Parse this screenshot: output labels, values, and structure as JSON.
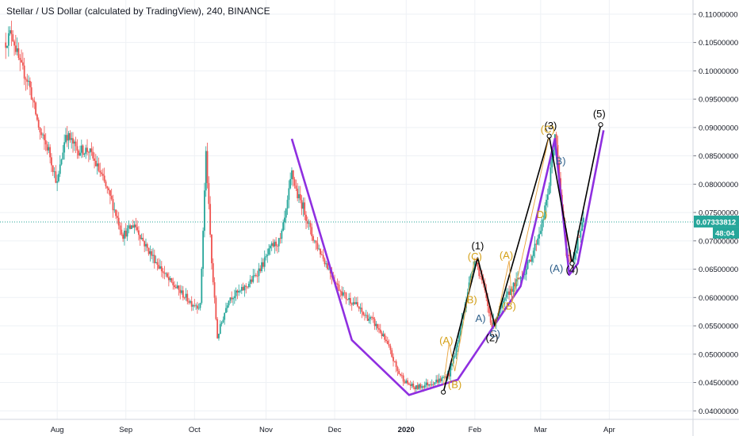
{
  "chart_data": {
    "type": "candlestick",
    "title": "Stellar / US Dollar (calculated by TradingView), 240, BINANCE",
    "y_ticks": [
      "0.11000000",
      "0.10500000",
      "0.10000000",
      "0.09500000",
      "0.09000000",
      "0.08500000",
      "0.08000000",
      "0.07500000",
      "0.07000000",
      "0.06500000",
      "0.06000000",
      "0.05500000",
      "0.05000000",
      "0.04500000",
      "0.04000000"
    ],
    "ylim": [
      0.0385,
      0.1125
    ],
    "x_ticks": [
      "Aug",
      "Sep",
      "Oct",
      "Nov",
      "Dec",
      "2020",
      "Feb",
      "Mar",
      "Apr"
    ],
    "bold_x_tick": "2020",
    "last_price": "0.07333812",
    "last_price_value": 0.07333812,
    "countdown": "48:04",
    "colors": {
      "up": "#26a69a",
      "down": "#ef5350",
      "purple": "#8f2fe0",
      "wave_black": "#000000",
      "wave_orange": "#d4a017",
      "wave_blue": "#2e5f8a",
      "price_line": "#26a69a",
      "grid": "#eef1f5"
    },
    "price_series": [
      [
        0,
        0.105
      ],
      [
        2,
        0.107
      ],
      [
        5,
        0.101
      ],
      [
        8,
        0.098
      ],
      [
        12,
        0.089
      ],
      [
        15,
        0.086
      ],
      [
        18,
        0.08
      ],
      [
        21,
        0.089
      ],
      [
        25,
        0.086
      ],
      [
        29,
        0.086
      ],
      [
        33,
        0.082
      ],
      [
        37,
        0.077
      ],
      [
        41,
        0.071
      ],
      [
        45,
        0.073
      ],
      [
        49,
        0.069
      ],
      [
        53,
        0.066
      ],
      [
        57,
        0.063
      ],
      [
        61,
        0.061
      ],
      [
        65,
        0.059
      ],
      [
        68,
        0.0585
      ],
      [
        70,
        0.0855
      ],
      [
        72,
        0.066
      ],
      [
        74,
        0.053
      ],
      [
        78,
        0.06
      ],
      [
        82,
        0.061
      ],
      [
        86,
        0.063
      ],
      [
        90,
        0.066
      ],
      [
        93,
        0.069
      ],
      [
        96,
        0.07
      ],
      [
        98,
        0.075
      ],
      [
        100,
        0.082
      ],
      [
        102,
        0.078
      ],
      [
        104,
        0.076
      ],
      [
        107,
        0.071
      ],
      [
        110,
        0.068
      ],
      [
        113,
        0.065
      ],
      [
        116,
        0.062
      ],
      [
        119,
        0.06
      ],
      [
        122,
        0.059
      ],
      [
        125,
        0.057
      ],
      [
        128,
        0.056
      ],
      [
        131,
        0.054
      ],
      [
        134,
        0.051
      ],
      [
        137,
        0.047
      ],
      [
        140,
        0.045
      ],
      [
        143,
        0.044
      ],
      [
        146,
        0.0445
      ],
      [
        149,
        0.045
      ],
      [
        152,
        0.0455
      ],
      [
        155,
        0.0465
      ],
      [
        158,
        0.052
      ],
      [
        161,
        0.06
      ],
      [
        164,
        0.067
      ],
      [
        167,
        0.062
      ],
      [
        170,
        0.055
      ],
      [
        173,
        0.058
      ],
      [
        176,
        0.061
      ],
      [
        179,
        0.063
      ],
      [
        182,
        0.065
      ],
      [
        185,
        0.069
      ],
      [
        188,
        0.074
      ],
      [
        190,
        0.08
      ],
      [
        192,
        0.089
      ],
      [
        194,
        0.078
      ],
      [
        196,
        0.068
      ],
      [
        198,
        0.066
      ],
      [
        200,
        0.07
      ],
      [
        202,
        0.0735
      ]
    ],
    "waves": [
      {
        "name": "purple-channel",
        "color": "#8f2fe0",
        "points": [
          [
            100,
            0.088
          ],
          [
            121,
            0.0525
          ],
          [
            141,
            0.0428
          ],
          [
            158,
            0.0455
          ],
          [
            168,
            0.053
          ],
          [
            180,
            0.062
          ],
          [
            192,
            0.088
          ],
          [
            197,
            0.064
          ],
          [
            200,
            0.066
          ],
          [
            209,
            0.0895
          ]
        ]
      },
      {
        "name": "black-impulse",
        "color": "#000000",
        "points": [
          [
            153,
            0.0433
          ],
          [
            165,
            0.067
          ],
          [
            171,
            0.055
          ],
          [
            190,
            0.0885
          ],
          [
            198,
            0.066
          ],
          [
            208,
            0.0905
          ]
        ]
      }
    ],
    "wave_labels": [
      {
        "text": "(1)",
        "x": 165,
        "y": 0.0685,
        "color": "#000000"
      },
      {
        "text": "(2)",
        "x": 170,
        "y": 0.0523,
        "color": "#000000"
      },
      {
        "text": "(3)",
        "x": 190.5,
        "y": 0.0897,
        "color": "#000000"
      },
      {
        "text": "(4)",
        "x": 198,
        "y": 0.0643,
        "color": "#000000"
      },
      {
        "text": "(5)",
        "x": 207.5,
        "y": 0.0918,
        "color": "#000000"
      },
      {
        "text": "(A)",
        "x": 154,
        "y": 0.0518,
        "color": "#d4a017"
      },
      {
        "text": "(B)",
        "x": 157,
        "y": 0.044,
        "color": "#d4a017"
      },
      {
        "text": "(C)",
        "x": 164,
        "y": 0.0666,
        "color": "#d4a017"
      },
      {
        "text": "(A)",
        "x": 175,
        "y": 0.0668,
        "color": "#d4a017"
      },
      {
        "text": "(B)",
        "x": 176,
        "y": 0.0579,
        "color": "#d4a017"
      },
      {
        "text": "(C)",
        "x": 189.5,
        "y": 0.0891,
        "color": "#d4a017"
      },
      {
        "text": "D)",
        "x": 187.5,
        "y": 0.074,
        "color": "#d4a017"
      },
      {
        "text": "B)",
        "x": 194,
        "y": 0.0835,
        "color": "#2e5f8a"
      },
      {
        "text": "(A)",
        "x": 192.5,
        "y": 0.0645,
        "color": "#2e5f8a"
      },
      {
        "text": "A)",
        "x": 166,
        "y": 0.0557,
        "color": "#2e5f8a"
      },
      {
        "text": "C)",
        "x": 171,
        "y": 0.053,
        "color": "#2e5f8a"
      },
      {
        "text": "B)",
        "x": 163,
        "y": 0.059,
        "color": "#d4a017"
      }
    ]
  }
}
